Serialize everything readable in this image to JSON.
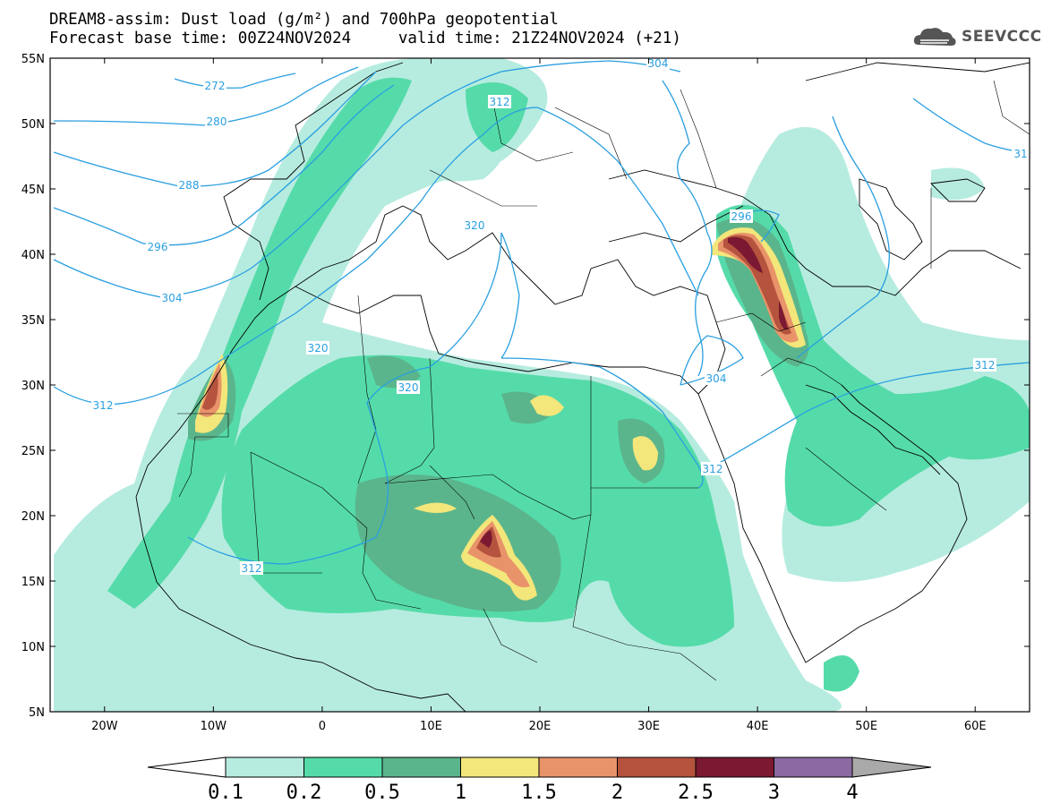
{
  "header": {
    "title_line1": "DREAM8-assim: Dust load (g/m²) and 700hPa geopotential",
    "title_line2": "Forecast base time: 00Z24NOV2024     valid time: 21Z24NOV2024 (+21)"
  },
  "logo": {
    "text": "SEEVCCC",
    "icon": "cloud-logo-icon"
  },
  "map": {
    "lon_range": [
      -25,
      65
    ],
    "lat_range": [
      5,
      55
    ],
    "lat_ticks": [
      "5N",
      "10N",
      "15N",
      "20N",
      "25N",
      "30N",
      "35N",
      "40N",
      "45N",
      "50N",
      "55N"
    ],
    "lon_ticks": [
      "20W",
      "10W",
      "0",
      "10E",
      "20E",
      "30E",
      "40E",
      "50E",
      "60E"
    ],
    "contour_color": "#2a9fe0",
    "contour_labels": [
      "272",
      "280",
      "288",
      "296",
      "304",
      "312",
      "320",
      "312",
      "320",
      "320",
      "304",
      "312",
      "296",
      "312",
      "304",
      "31"
    ],
    "dust_color_low": "#b6ecdf",
    "dust_color_mid": "#55dba9",
    "dust_color_high": "#5bb58c",
    "dust_color_1": "#f3e67a",
    "dust_color_15": "#e9936a",
    "dust_color_2": "#b5533e",
    "dust_color_25": "#7a1931"
  },
  "colorbar": {
    "labels": [
      "0.1",
      "0.2",
      "0.5",
      "1",
      "1.5",
      "2",
      "2.5",
      "3",
      "4"
    ],
    "colors": [
      "#b6ecdf",
      "#55dba9",
      "#5bb58c",
      "#f3e67a",
      "#e9936a",
      "#b5533e",
      "#7a1931",
      "#8a6aa0"
    ],
    "under_color": "#ffffff",
    "over_color": "#a9a9a9"
  }
}
